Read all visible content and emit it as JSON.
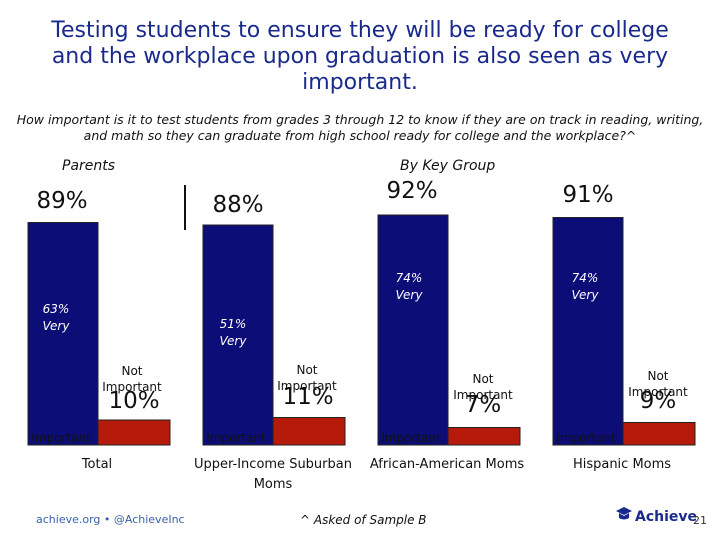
{
  "title": "Testing students to ensure they will be ready for college and the workplace upon graduation is also seen as very important.",
  "question": "How important is it to test students from grades 3 through 12 to know if they are on track in reading, writing, and math so they can graduate from high school ready for college and the workplace?^",
  "section_labels": {
    "parents": "Parents",
    "by_key_group": "By Key Group"
  },
  "colors": {
    "important": "#0d0d78",
    "not_important": "#b51a0a",
    "title": "#1a2a8c"
  },
  "footer": {
    "left": "achieve.org • @AchieveInc",
    "note": "^ Asked of Sample B",
    "logo": "Achieve",
    "page": "21"
  },
  "chart_data": {
    "type": "bar",
    "categories": [
      "Total",
      "Upper-Income Suburban Moms",
      "African-American Moms",
      "Hispanic Moms"
    ],
    "series": [
      {
        "name": "Important",
        "values": [
          89,
          88,
          92,
          91
        ],
        "labels": [
          "89%",
          "88%",
          "92%",
          "91%"
        ],
        "very": [
          63,
          51,
          74,
          74
        ],
        "very_labels": [
          "63% Very",
          "51% Very",
          "74% Very",
          "74% Very"
        ]
      },
      {
        "name": "Not Important",
        "values": [
          10,
          11,
          7,
          9
        ],
        "labels": [
          "10%",
          "11%",
          "7%",
          "9%"
        ]
      }
    ],
    "ylim": [
      0,
      100
    ]
  }
}
